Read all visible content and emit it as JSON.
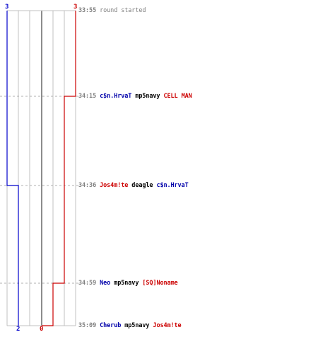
{
  "chart_data": {
    "type": "line",
    "title": "",
    "xlabel": "",
    "ylabel": "",
    "series": [
      {
        "team": "blue",
        "color": "#0000cc",
        "start_label": "3",
        "end_label": "2",
        "steps": [
          3,
          3,
          2,
          2,
          2,
          2
        ]
      },
      {
        "team": "red",
        "color": "#cc0000",
        "start_label": "3",
        "end_label": "0",
        "steps": [
          3,
          2,
          2,
          1,
          0,
          0
        ]
      }
    ],
    "events": [
      {
        "time": "33:55",
        "text": "round started"
      },
      {
        "time": "34:15",
        "killer": "c$n.HrvaT",
        "killer_team": "blue",
        "weapon": "mp5navy",
        "victim": "CELL MAN",
        "victim_team": "red"
      },
      {
        "time": "34:36",
        "killer": "Jos4m!te",
        "killer_team": "red",
        "weapon": "deagle",
        "victim": "c$n.HrvaT",
        "victim_team": "blue"
      },
      {
        "time": "34:59",
        "killer": "Neo",
        "killer_team": "blue",
        "weapon": "mp5navy",
        "victim": "[SQ]Noname",
        "victim_team": "red"
      },
      {
        "time": "35:09",
        "killer": "Cherub",
        "killer_team": "blue",
        "weapon": "mp5navy",
        "victim": "Jos4m!te",
        "victim_team": "red"
      }
    ]
  }
}
